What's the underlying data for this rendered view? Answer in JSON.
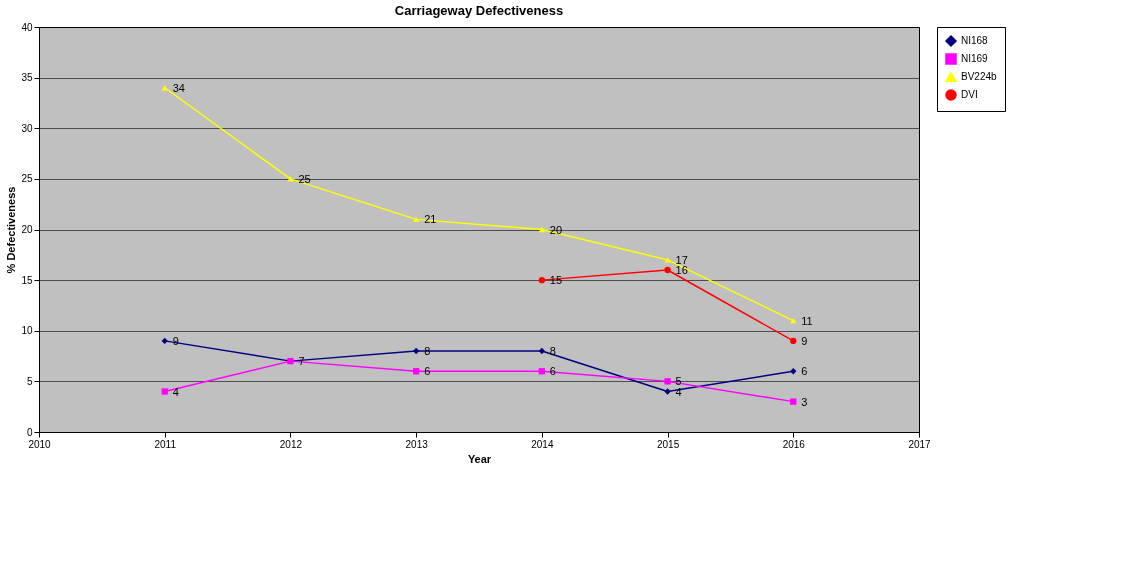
{
  "chart_data": {
    "type": "line",
    "title": "Carriageway Defectiveness",
    "xlabel": "Year",
    "ylabel": "% Defectiveness",
    "x": [
      2011,
      2012,
      2013,
      2014,
      2015,
      2016
    ],
    "series": [
      {
        "name": "NI168",
        "color": "#000080",
        "marker": "diamond",
        "values": [
          9,
          7,
          8,
          8,
          4,
          6
        ]
      },
      {
        "name": "NI169",
        "color": "#ff00ff",
        "marker": "square",
        "values": [
          4,
          7,
          6,
          6,
          5,
          3
        ],
        "value_labels": [
          "4",
          null,
          "6",
          "6",
          "5",
          "3"
        ]
      },
      {
        "name": "BV224b",
        "color": "#ffff00",
        "marker": "triangle",
        "values": [
          34,
          25,
          21,
          20,
          17,
          11
        ]
      },
      {
        "name": "DVI",
        "color": "#ff0000",
        "marker": "circle",
        "values": [
          null,
          null,
          null,
          15,
          16,
          9
        ]
      }
    ],
    "xlim": [
      2010,
      2017
    ],
    "xticks": [
      2010,
      2011,
      2012,
      2013,
      2014,
      2015,
      2016,
      2017
    ],
    "ylim": [
      0,
      40
    ],
    "yticks": [
      0,
      5,
      10,
      15,
      20,
      25,
      30,
      35,
      40
    ],
    "grid": "y",
    "legend": "right",
    "data_labels": true,
    "line_style": "solid"
  }
}
